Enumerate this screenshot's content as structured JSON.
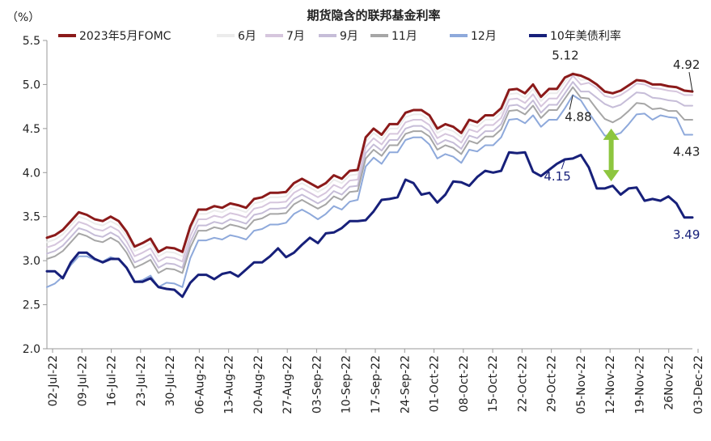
{
  "chart_data": {
    "type": "line",
    "title": "期货隐含的联邦基金利率",
    "ylabel": "（%）",
    "ylim": [
      2.0,
      5.5
    ],
    "yticks": [
      "2.0",
      "2.5",
      "3.0",
      "3.5",
      "4.0",
      "4.5",
      "5.0",
      "5.5"
    ],
    "xticks": [
      "02-Jul-22",
      "09-Jul-22",
      "16-Jul-22",
      "23-Jul-22",
      "30-Jul-22",
      "06-Aug-22",
      "13-Aug-22",
      "20-Aug-22",
      "27-Aug-22",
      "03-Sep-22",
      "10-Sep-22",
      "17-Sep-22",
      "24-Sep-22",
      "01-Oct-22",
      "08-Oct-22",
      "15-Oct-22",
      "22-Oct-22",
      "29-Oct-22",
      "05-Nov-22",
      "12-Nov-22",
      "19-Nov-22",
      "26Nov-22",
      "03-Dec-22"
    ],
    "grid": false,
    "legend_position": "top",
    "series": [
      {
        "name": "2023年5月FOMC",
        "color": "#8B1A1A",
        "width": 3,
        "values": [
          3.26,
          3.29,
          3.35,
          3.45,
          3.55,
          3.52,
          3.47,
          3.45,
          3.5,
          3.45,
          3.33,
          3.16,
          3.2,
          3.25,
          3.1,
          3.15,
          3.14,
          3.1,
          3.39,
          3.58,
          3.58,
          3.62,
          3.6,
          3.65,
          3.63,
          3.6,
          3.7,
          3.72,
          3.77,
          3.77,
          3.78,
          3.88,
          3.93,
          3.88,
          3.83,
          3.88,
          3.97,
          3.93,
          4.02,
          4.03,
          4.4,
          4.5,
          4.43,
          4.55,
          4.55,
          4.68,
          4.71,
          4.71,
          4.65,
          4.5,
          4.55,
          4.52,
          4.45,
          4.6,
          4.57,
          4.65,
          4.65,
          4.73,
          4.94,
          4.95,
          4.9,
          5.0,
          4.86,
          4.95,
          4.95,
          5.08,
          5.12,
          5.1,
          5.06,
          5.0,
          4.92,
          4.9,
          4.93,
          4.99,
          5.05,
          5.04,
          5.0,
          5.0,
          4.98,
          4.97,
          4.93,
          4.92
        ]
      },
      {
        "name": "6月",
        "color": "#ECECEC",
        "width": 2,
        "values": [
          3.21,
          3.24,
          3.3,
          3.4,
          3.5,
          3.47,
          3.42,
          3.4,
          3.45,
          3.4,
          3.28,
          3.11,
          3.15,
          3.2,
          3.05,
          3.1,
          3.09,
          3.05,
          3.34,
          3.53,
          3.53,
          3.57,
          3.55,
          3.6,
          3.58,
          3.55,
          3.65,
          3.67,
          3.72,
          3.72,
          3.73,
          3.83,
          3.88,
          3.83,
          3.78,
          3.83,
          3.92,
          3.88,
          3.97,
          3.98,
          4.35,
          4.45,
          4.38,
          4.5,
          4.5,
          4.63,
          4.66,
          4.66,
          4.6,
          4.45,
          4.5,
          4.47,
          4.4,
          4.55,
          4.52,
          4.6,
          4.6,
          4.68,
          4.89,
          4.9,
          4.85,
          4.95,
          4.81,
          4.9,
          4.9,
          5.03,
          5.14,
          5.05,
          5.06,
          5.0,
          4.92,
          4.9,
          4.93,
          4.99,
          5.05,
          5.04,
          5.0,
          5.0,
          4.98,
          4.97,
          4.93,
          4.93
        ]
      },
      {
        "name": "7月",
        "color": "#D6C6DD",
        "width": 2,
        "values": [
          3.15,
          3.18,
          3.24,
          3.34,
          3.44,
          3.41,
          3.36,
          3.34,
          3.39,
          3.34,
          3.22,
          3.05,
          3.09,
          3.14,
          2.99,
          3.04,
          3.03,
          2.99,
          3.28,
          3.47,
          3.47,
          3.51,
          3.49,
          3.54,
          3.52,
          3.49,
          3.59,
          3.61,
          3.66,
          3.66,
          3.67,
          3.77,
          3.82,
          3.77,
          3.72,
          3.77,
          3.86,
          3.82,
          3.91,
          3.92,
          4.29,
          4.39,
          4.32,
          4.44,
          4.44,
          4.57,
          4.6,
          4.6,
          4.54,
          4.39,
          4.44,
          4.41,
          4.34,
          4.49,
          4.46,
          4.54,
          4.54,
          4.62,
          4.83,
          4.84,
          4.79,
          4.89,
          4.75,
          4.84,
          4.84,
          4.97,
          5.1,
          5.0,
          5.02,
          4.96,
          4.87,
          4.85,
          4.88,
          4.94,
          5.01,
          5.0,
          4.96,
          4.95,
          4.93,
          4.92,
          4.88,
          4.88
        ]
      },
      {
        "name": "9月",
        "color": "#C6BDD8",
        "width": 2,
        "values": [
          3.08,
          3.11,
          3.17,
          3.27,
          3.37,
          3.34,
          3.29,
          3.27,
          3.32,
          3.27,
          3.15,
          2.98,
          3.02,
          3.07,
          2.92,
          2.97,
          2.96,
          2.92,
          3.21,
          3.4,
          3.4,
          3.44,
          3.42,
          3.47,
          3.45,
          3.42,
          3.52,
          3.54,
          3.59,
          3.59,
          3.6,
          3.7,
          3.75,
          3.7,
          3.65,
          3.7,
          3.79,
          3.75,
          3.84,
          3.85,
          4.22,
          4.32,
          4.25,
          4.37,
          4.37,
          4.5,
          4.53,
          4.53,
          4.47,
          4.32,
          4.37,
          4.34,
          4.27,
          4.42,
          4.39,
          4.47,
          4.47,
          4.55,
          4.76,
          4.77,
          4.72,
          4.82,
          4.68,
          4.77,
          4.77,
          4.9,
          5.03,
          4.92,
          4.92,
          4.85,
          4.78,
          4.74,
          4.77,
          4.84,
          4.91,
          4.9,
          4.85,
          4.84,
          4.82,
          4.81,
          4.76,
          4.76
        ]
      },
      {
        "name": "11月",
        "color": "#A6A6A6",
        "width": 2,
        "values": [
          3.02,
          3.05,
          3.11,
          3.21,
          3.31,
          3.28,
          3.23,
          3.21,
          3.26,
          3.21,
          3.09,
          2.92,
          2.96,
          3.01,
          2.86,
          2.91,
          2.9,
          2.86,
          3.15,
          3.34,
          3.34,
          3.38,
          3.36,
          3.41,
          3.39,
          3.36,
          3.46,
          3.48,
          3.53,
          3.53,
          3.54,
          3.64,
          3.69,
          3.64,
          3.59,
          3.64,
          3.73,
          3.69,
          3.78,
          3.79,
          4.16,
          4.26,
          4.19,
          4.31,
          4.31,
          4.44,
          4.47,
          4.47,
          4.41,
          4.26,
          4.31,
          4.28,
          4.21,
          4.36,
          4.33,
          4.41,
          4.41,
          4.49,
          4.7,
          4.71,
          4.66,
          4.76,
          4.62,
          4.71,
          4.71,
          4.84,
          4.97,
          4.85,
          4.84,
          4.72,
          4.61,
          4.57,
          4.62,
          4.7,
          4.79,
          4.78,
          4.72,
          4.73,
          4.7,
          4.7,
          4.6,
          4.6
        ]
      },
      {
        "name": "12月",
        "color": "#8EA9DB",
        "width": 2,
        "values": [
          2.7,
          2.74,
          2.82,
          2.95,
          3.05,
          3.05,
          3.01,
          2.99,
          3.04,
          3.01,
          2.92,
          2.76,
          2.78,
          2.83,
          2.7,
          2.75,
          2.74,
          2.7,
          3.03,
          3.23,
          3.23,
          3.26,
          3.24,
          3.29,
          3.27,
          3.24,
          3.34,
          3.36,
          3.41,
          3.41,
          3.43,
          3.53,
          3.58,
          3.53,
          3.47,
          3.53,
          3.62,
          3.58,
          3.67,
          3.69,
          4.07,
          4.17,
          4.1,
          4.23,
          4.23,
          4.37,
          4.4,
          4.4,
          4.32,
          4.16,
          4.21,
          4.18,
          4.11,
          4.26,
          4.24,
          4.31,
          4.31,
          4.4,
          4.6,
          4.61,
          4.56,
          4.65,
          4.52,
          4.6,
          4.6,
          4.73,
          4.88,
          4.82,
          4.68,
          4.55,
          4.42,
          4.42,
          4.45,
          4.55,
          4.66,
          4.67,
          4.6,
          4.65,
          4.63,
          4.62,
          4.43,
          4.43
        ]
      },
      {
        "name": "10年美债利率",
        "color": "#17207A",
        "width": 3,
        "values": [
          2.88,
          2.88,
          2.8,
          2.98,
          3.09,
          3.09,
          3.02,
          2.98,
          3.02,
          3.02,
          2.92,
          2.76,
          2.76,
          2.8,
          2.7,
          2.68,
          2.67,
          2.59,
          2.75,
          2.84,
          2.84,
          2.79,
          2.85,
          2.87,
          2.82,
          2.9,
          2.98,
          2.98,
          3.05,
          3.14,
          3.04,
          3.09,
          3.18,
          3.26,
          3.2,
          3.31,
          3.32,
          3.37,
          3.45,
          3.45,
          3.46,
          3.56,
          3.69,
          3.7,
          3.72,
          3.92,
          3.88,
          3.75,
          3.77,
          3.66,
          3.75,
          3.9,
          3.89,
          3.85,
          3.95,
          4.02,
          4.0,
          4.02,
          4.23,
          4.22,
          4.23,
          4.01,
          3.96,
          4.03,
          4.1,
          4.15,
          4.16,
          4.2,
          4.06,
          3.82,
          3.82,
          3.85,
          3.75,
          3.82,
          3.83,
          3.68,
          3.7,
          3.68,
          3.73,
          3.65,
          3.49,
          3.49
        ]
      }
    ],
    "annotations": [
      {
        "text": "5.12",
        "color": "#222222"
      },
      {
        "text": "4.92",
        "color": "#222222"
      },
      {
        "text": "4.88",
        "color": "#222222"
      },
      {
        "text": "4.43",
        "color": "#222222"
      },
      {
        "text": "4.15",
        "color": "#17207A"
      },
      {
        "text": "3.49",
        "color": "#17207A"
      }
    ],
    "arrow_color": "#8DC63F"
  }
}
